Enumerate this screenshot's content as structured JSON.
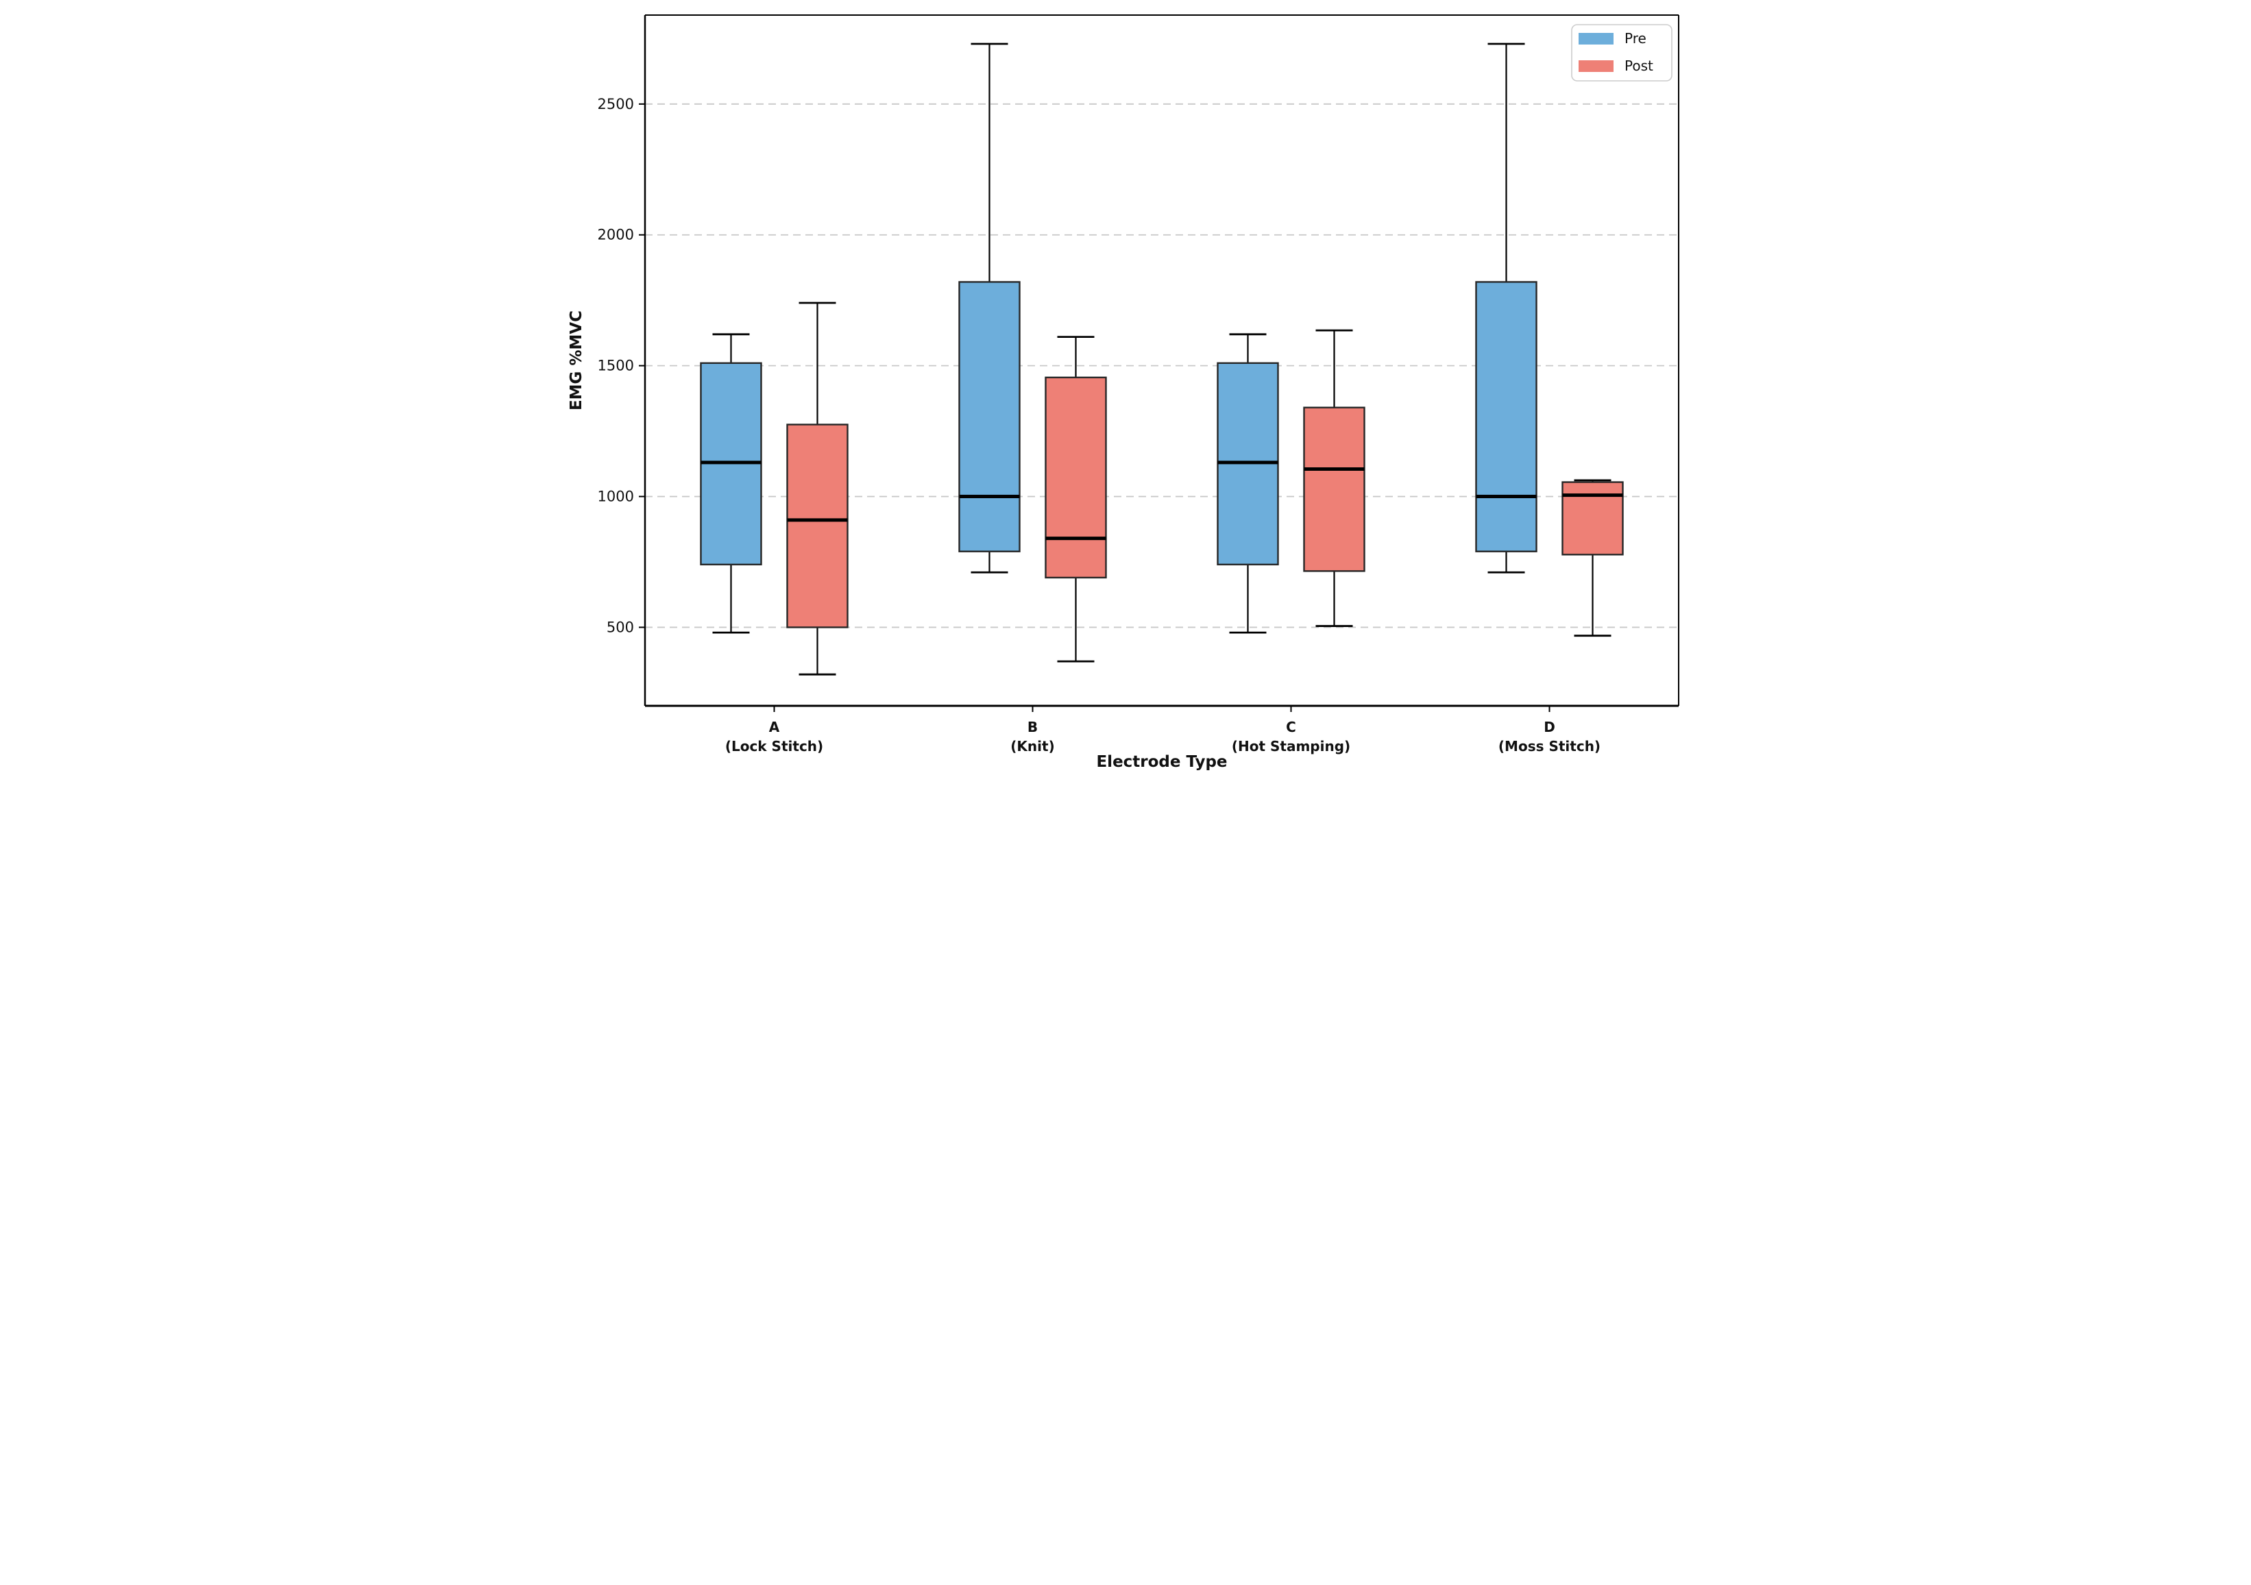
{
  "figure": {
    "background": "#ffffff",
    "legend": {
      "position": "upper-right",
      "items": [
        {
          "label": "Pre",
          "color": "#6DAEDB"
        },
        {
          "label": "Post",
          "color": "#EE8076"
        }
      ]
    }
  },
  "chart_data": {
    "type": "boxplot",
    "title": "",
    "xlabel": "Electrode Type",
    "ylabel": "EMG %MVC",
    "ylim": [
      200,
      2840
    ],
    "yticks": [
      500,
      1000,
      1500,
      2000,
      2500
    ],
    "grid": "horizontal-dashed",
    "grid_color": "#c8c8c8",
    "box_edge_color": "#262626",
    "median_color": "#000000",
    "whisker_color": "#000000",
    "legend_position": "upper-right",
    "categories": [
      {
        "line1": "A",
        "line2": "(Lock Stitch)"
      },
      {
        "line1": "B",
        "line2": "(Knit)"
      },
      {
        "line1": "C",
        "line2": "(Hot Stamping)"
      },
      {
        "line1": "D",
        "line2": "(Moss Stitch)"
      }
    ],
    "series": [
      {
        "name": "Pre",
        "color": "#6DAEDB",
        "boxes": [
          {
            "min": 480,
            "q1": 740,
            "median": 1130,
            "q3": 1510,
            "max": 1620
          },
          {
            "min": 710,
            "q1": 790,
            "median": 1000,
            "q3": 1820,
            "max": 2730
          },
          {
            "min": 480,
            "q1": 740,
            "median": 1130,
            "q3": 1510,
            "max": 1620
          },
          {
            "min": 710,
            "q1": 790,
            "median": 1000,
            "q3": 1820,
            "max": 2730
          }
        ]
      },
      {
        "name": "Post",
        "color": "#EE8076",
        "boxes": [
          {
            "min": 320,
            "q1": 500,
            "median": 910,
            "q3": 1275,
            "max": 1740
          },
          {
            "min": 370,
            "q1": 690,
            "median": 840,
            "q3": 1455,
            "max": 1610
          },
          {
            "min": 505,
            "q1": 715,
            "median": 1105,
            "q3": 1340,
            "max": 1635
          },
          {
            "min": 468,
            "q1": 778,
            "median": 1005,
            "q3": 1055,
            "max": 1062
          }
        ]
      }
    ]
  }
}
